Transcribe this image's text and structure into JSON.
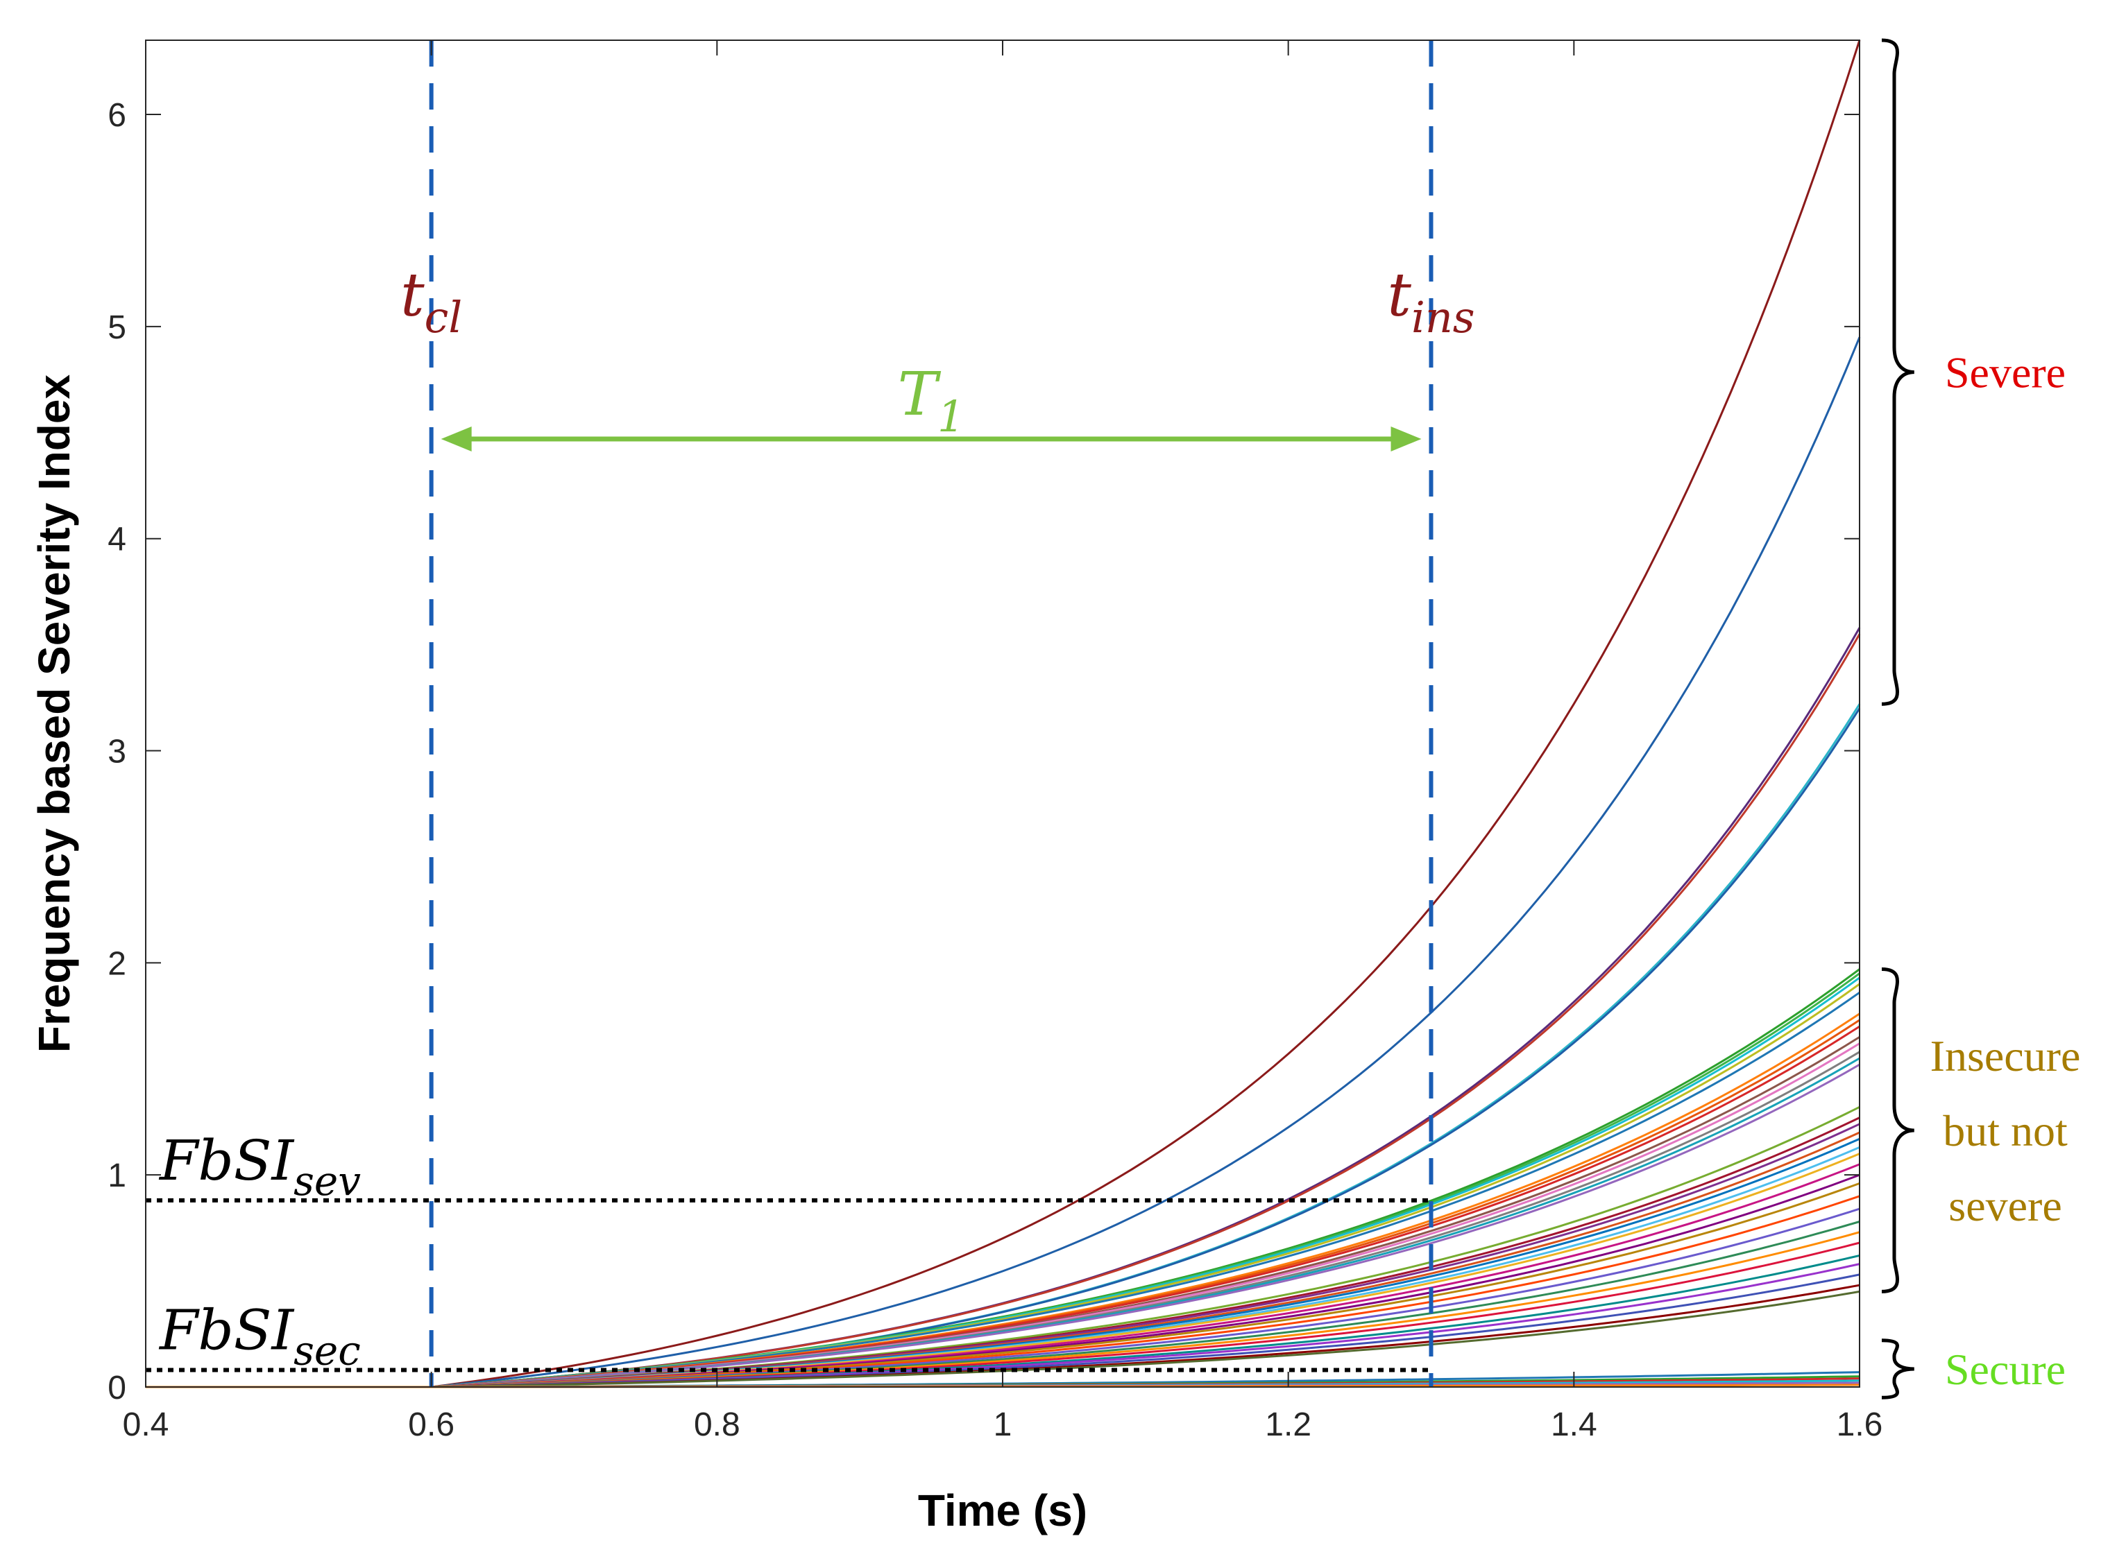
{
  "chart_data": {
    "type": "line",
    "title": "",
    "xlabel": "Time (s)",
    "ylabel": "Frequency based Severity Index",
    "xlim": [
      0.4,
      1.6
    ],
    "ylim": [
      0,
      6.35
    ],
    "xticks": [
      0.4,
      0.6,
      0.8,
      1.0,
      1.2,
      1.4,
      1.6
    ],
    "xtick_labels": [
      "0.4",
      "0.6",
      "0.8",
      "1",
      "1.2",
      "1.4",
      "1.6"
    ],
    "yticks": [
      0,
      1,
      2,
      3,
      4,
      5,
      6
    ],
    "ytick_labels": [
      "0",
      "1",
      "2",
      "3",
      "4",
      "5",
      "6"
    ],
    "curve_model": "y = A * (exp(k*(t-0.6)) - 1) / (exp(k) - 1), A = value at t = 1.6 s",
    "series_families": [
      {
        "group": "Severe",
        "final_values": [
          6.35,
          4.95,
          3.58,
          3.55,
          3.22,
          3.2
        ],
        "k": 3.2,
        "colors": [
          "#8b1a1a",
          "#1f5fa8",
          "#5a2a7a",
          "#c0392b",
          "#2bb5c9",
          "#1f5fa8"
        ]
      },
      {
        "group": "Insecure but not severe",
        "final_values": [
          1.97,
          1.95,
          1.93,
          1.9,
          1.86,
          1.76,
          1.73,
          1.7,
          1.65,
          1.62,
          1.58,
          1.55,
          1.52,
          1.32,
          1.27,
          1.24,
          1.2,
          1.17,
          1.13,
          1.1,
          1.05,
          1.0,
          0.96,
          0.9,
          0.84,
          0.78,
          0.73,
          0.68,
          0.62,
          0.58,
          0.53,
          0.48,
          0.45
        ],
        "k": 2.3,
        "colors": [
          "#2ca02c",
          "#3cb44b",
          "#17becf",
          "#bcbd22",
          "#1f77b4",
          "#ff7f0e",
          "#e6550d",
          "#d62728",
          "#8c564b",
          "#e377c2",
          "#7f7f7f",
          "#17a2b8",
          "#9467bd",
          "#77ac30",
          "#a2142f",
          "#7e2f8e",
          "#d95319",
          "#0072bd",
          "#4dbeee",
          "#edb120",
          "#c71585",
          "#800080",
          "#b8860b",
          "#ff4500",
          "#6a5acd",
          "#2e8b57",
          "#ff8c00",
          "#dc143c",
          "#008b8b",
          "#9932cc",
          "#3f51b5",
          "#8b0000",
          "#556b2f"
        ]
      },
      {
        "group": "Secure",
        "final_values": [
          0.07,
          0.05,
          0.04,
          0.03,
          0.02,
          0.01
        ],
        "k": 1.6,
        "colors": [
          "#1f77b4",
          "#2ca02c",
          "#d62728",
          "#17becf",
          "#9467bd",
          "#ff7f0e"
        ]
      }
    ],
    "vertical_lines": [
      {
        "x": 0.6,
        "label": "t",
        "subscript": "cl",
        "color": "#1a5db5",
        "label_color": "#8b1a1a",
        "style": "dashed"
      },
      {
        "x": 1.3,
        "label": "t",
        "subscript": "ins",
        "color": "#1a5db5",
        "label_color": "#8b1a1a",
        "style": "dashed"
      }
    ],
    "threshold_lines": [
      {
        "y": 0.88,
        "label": "FbSI",
        "subscript": "sev",
        "x_from": 0.4,
        "x_to": 1.3,
        "color": "#000000",
        "style": "dotted"
      },
      {
        "y": 0.08,
        "label": "FbSI",
        "subscript": "sec",
        "x_from": 0.4,
        "x_to": 1.3,
        "color": "#000000",
        "style": "dotted"
      }
    ],
    "interval_annotation": {
      "label": "T",
      "subscript": "1",
      "x_from": 0.6,
      "x_to": 1.3,
      "y": 4.47,
      "color": "#7dc242"
    },
    "category_brackets": [
      {
        "lines": [
          "Severe"
        ],
        "y_from": 3.22,
        "y_to": 6.35,
        "color": "#e00000"
      },
      {
        "lines": [
          "Insecure",
          "but not",
          "severe"
        ],
        "y_from": 0.45,
        "y_to": 1.97,
        "color": "#a67c00"
      },
      {
        "lines": [
          "Secure"
        ],
        "y_from": -0.05,
        "y_to": 0.22,
        "color": "#66dd22"
      }
    ]
  }
}
